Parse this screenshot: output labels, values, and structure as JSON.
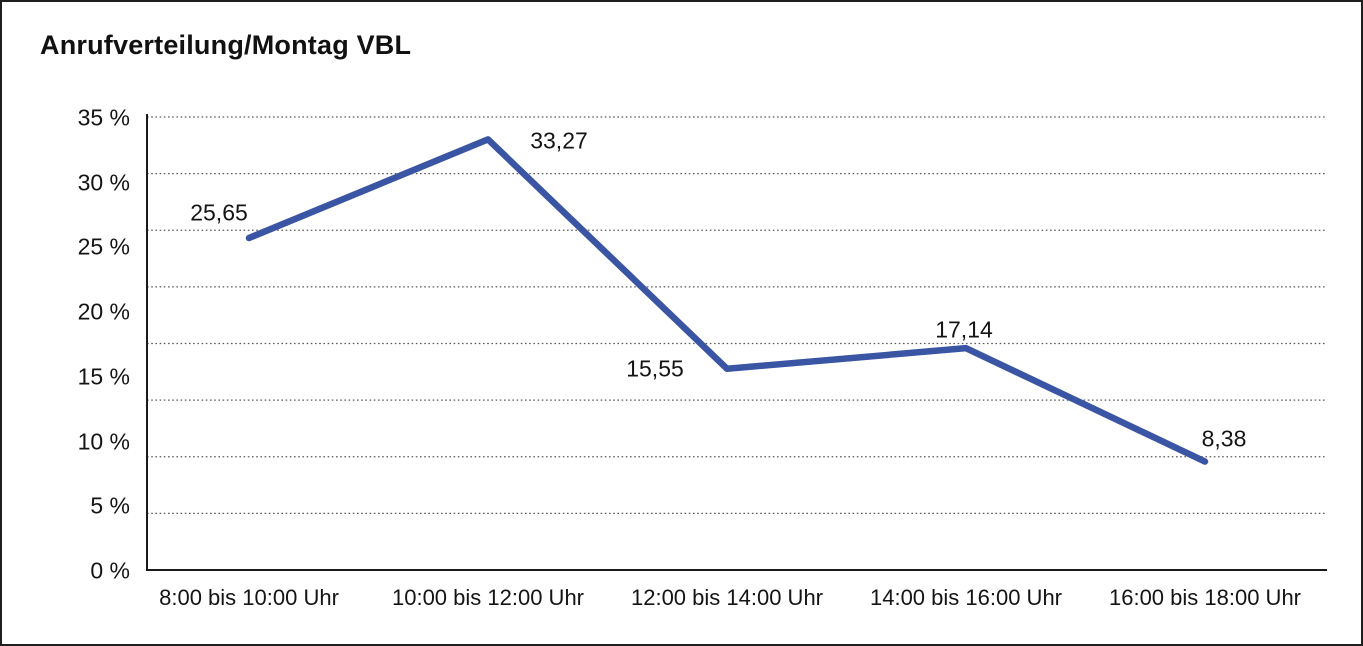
{
  "title": "Anrufverteilung/Montag VBL",
  "chart_data": {
    "type": "line",
    "title": "Anrufverteilung/Montag VBL",
    "categories": [
      "8:00 bis 10:00 Uhr",
      "10:00 bis 12:00 Uhr",
      "12:00 bis 14:00 Uhr",
      "14:00 bis 16:00 Uhr",
      "16:00 bis 18:00 Uhr"
    ],
    "values": [
      25.65,
      33.27,
      15.55,
      17.14,
      8.38
    ],
    "value_labels": [
      "25,65",
      "33,27",
      "15,55",
      "17,14",
      "8,38"
    ],
    "y_axis": {
      "min": 0,
      "max": 35,
      "tick_step": 5,
      "unit": "%",
      "tick_labels": [
        "35 %",
        "30 %",
        "25 %",
        "20 %",
        "15 %",
        "10 %",
        "5 %",
        "0 %"
      ],
      "gridline_divisions": 8,
      "grid_style": "dotted"
    },
    "legend": "none",
    "colors": {
      "line": "#3A55A3",
      "grid": "#5c5c5c",
      "axis": "#1a1a1a",
      "text": "#141414",
      "background": "#ffffff",
      "frame_border": "#1f1f1f"
    }
  }
}
